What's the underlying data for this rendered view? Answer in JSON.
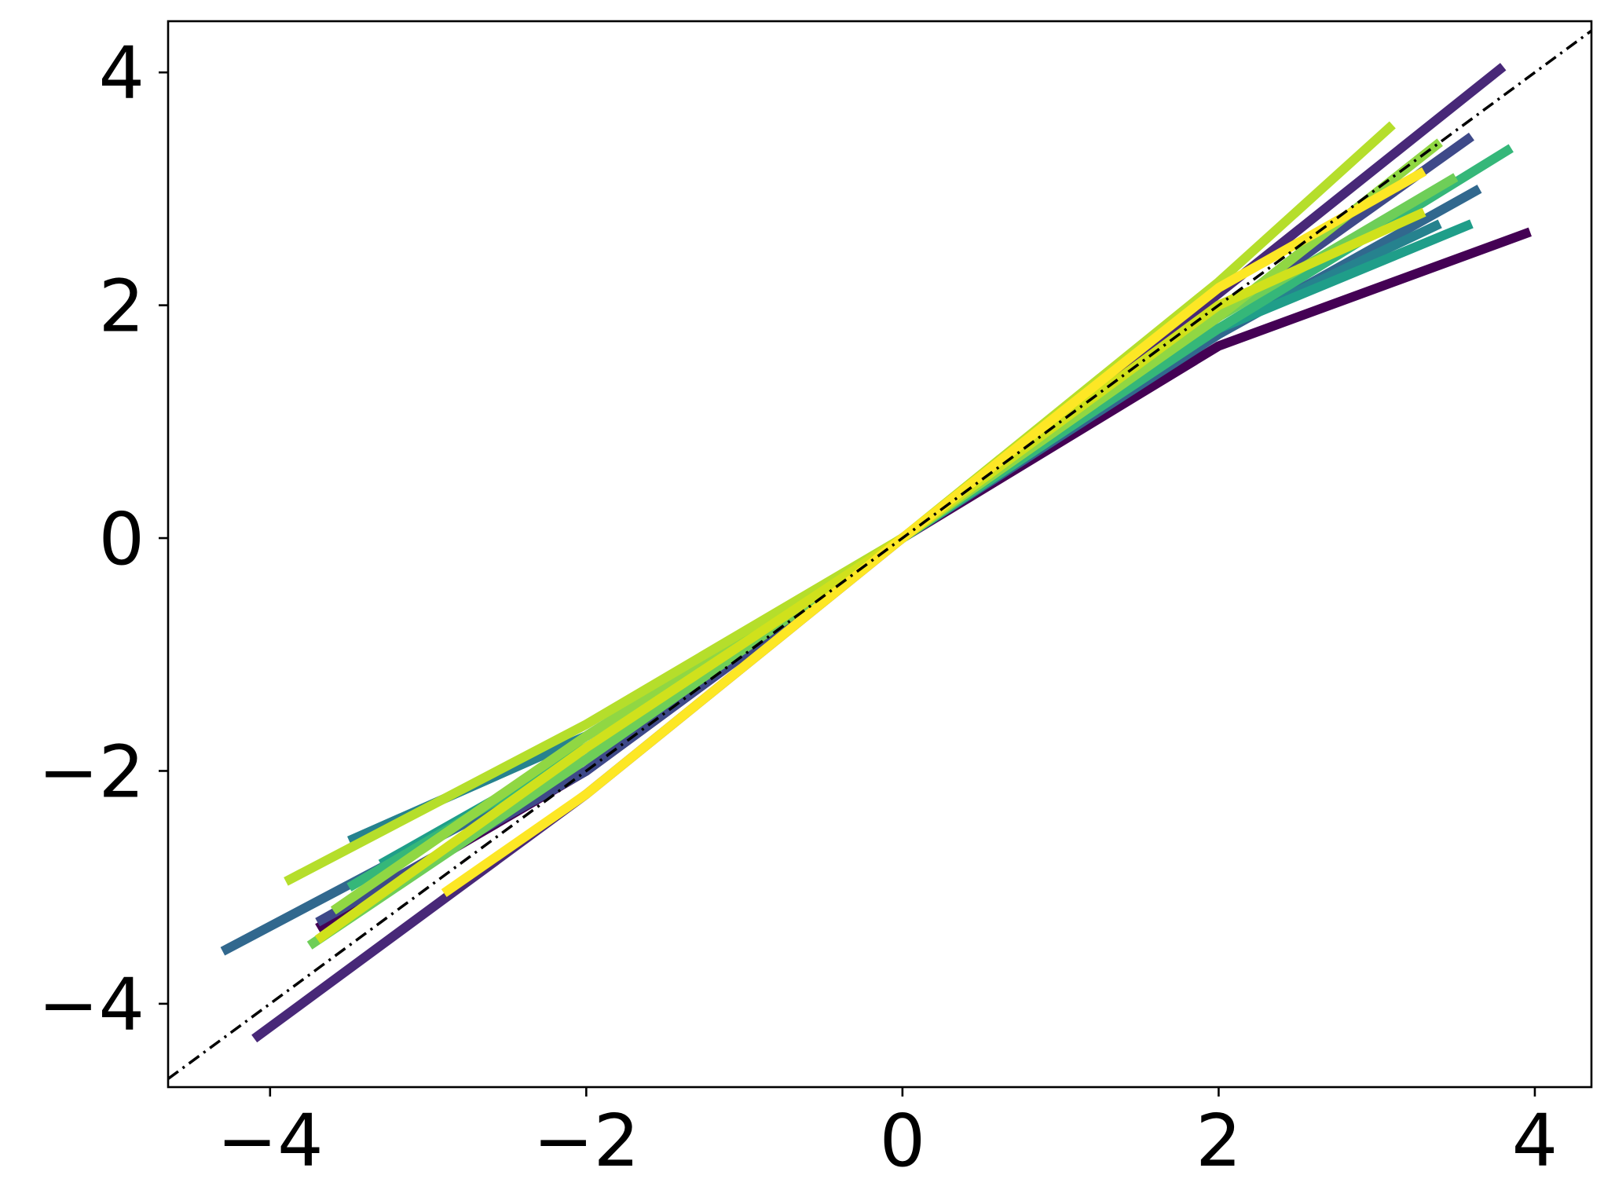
{
  "chart_data": {
    "type": "line",
    "xlim": [
      -4.645,
      4.358
    ],
    "ylim": [
      -4.716,
      4.44
    ],
    "xticks": [
      {
        "value": -4,
        "label": "−4"
      },
      {
        "value": -2,
        "label": "−2"
      },
      0,
      2,
      4
    ],
    "yticks": [
      {
        "value": -4,
        "label": "−4"
      },
      {
        "value": -2,
        "label": "−2"
      },
      0,
      2,
      4
    ],
    "series": [
      {
        "color": "#440154",
        "x": [
          -3.7,
          -2,
          0,
          2,
          3.97
        ],
        "values": [
          -3.35,
          -2.0,
          0,
          1.65,
          2.63
        ]
      },
      {
        "color": "#482878",
        "x": [
          -4.1,
          -2,
          0,
          2,
          3.8
        ],
        "values": [
          -4.3,
          -2.2,
          0,
          2.1,
          4.05
        ]
      },
      {
        "color": "#3e4989",
        "x": [
          -3.7,
          -2,
          0,
          2,
          3.6
        ],
        "values": [
          -3.3,
          -2.0,
          0,
          1.9,
          3.45
        ]
      },
      {
        "color": "#31688e",
        "x": [
          -4.3,
          -2,
          0,
          2,
          3.65
        ],
        "values": [
          -3.55,
          -1.9,
          0,
          1.75,
          3.0
        ]
      },
      {
        "color": "#26828e",
        "x": [
          -3.5,
          -2,
          0,
          2,
          3.4
        ],
        "values": [
          -2.6,
          -1.7,
          0,
          1.8,
          2.7
        ]
      },
      {
        "color": "#1f9e89",
        "x": [
          -3.3,
          -2,
          0,
          2,
          3.6
        ],
        "values": [
          -2.8,
          -1.8,
          0,
          1.8,
          2.7
        ]
      },
      {
        "color": "#35b779",
        "x": [
          -3.5,
          -2,
          0,
          2,
          3.85
        ],
        "values": [
          -3.0,
          -1.8,
          0,
          1.8,
          3.35
        ]
      },
      {
        "color": "#6ece58",
        "x": [
          -3.75,
          -2,
          0,
          2,
          3.5
        ],
        "values": [
          -3.5,
          -1.9,
          0,
          1.9,
          3.1
        ]
      },
      {
        "color": "#90d743",
        "x": [
          -3.6,
          -2,
          0,
          2,
          3.4
        ],
        "values": [
          -3.2,
          -1.7,
          0,
          1.9,
          3.4
        ]
      },
      {
        "color": "#b5de2b",
        "x": [
          -3.9,
          -2,
          0,
          2,
          3.1
        ],
        "values": [
          -2.95,
          -1.6,
          0,
          2.2,
          3.55
        ]
      },
      {
        "color": "#d0e11c",
        "x": [
          -3.7,
          -2,
          0,
          2,
          3.3
        ],
        "values": [
          -3.45,
          -1.8,
          0,
          2.0,
          2.8
        ]
      },
      {
        "color": "#fde725",
        "x": [
          -2.9,
          -2,
          0,
          2,
          3.3
        ],
        "values": [
          -3.05,
          -2.2,
          0,
          2.15,
          3.15
        ]
      },
      {
        "color": "#000000",
        "style": "dashdot",
        "x": [
          -4.645,
          4.358
        ],
        "values": [
          -4.645,
          4.358
        ]
      }
    ]
  }
}
